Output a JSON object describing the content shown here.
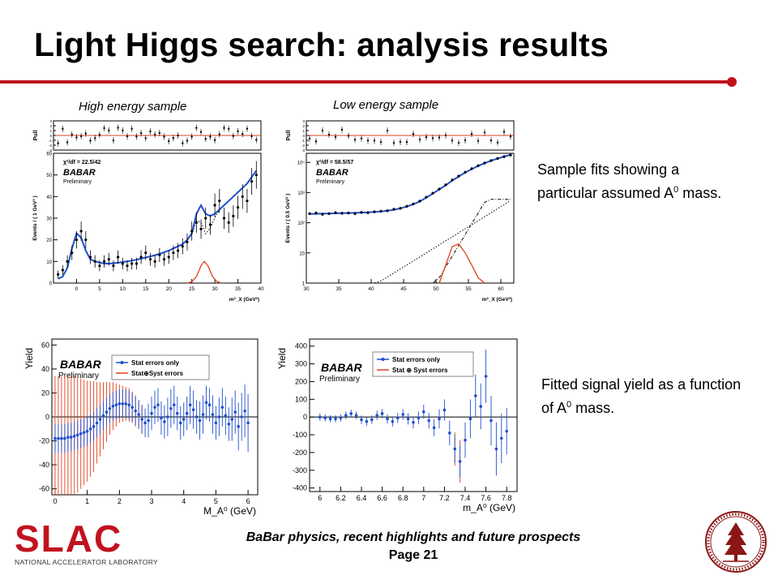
{
  "slide": {
    "title": "Light Higgs search: analysis results",
    "caption_high": "High energy sample",
    "caption_low": "Low energy sample",
    "desc_fits_pre": "Sample fits showing a particular assumed A",
    "desc_fits_sup": "0",
    "desc_fits_post": " mass.",
    "desc_yield_pre": "Fitted signal yield as a function of A",
    "desc_yield_sup": "0",
    "desc_yield_post": " mass.",
    "footer_title": "BaBar physics, recent highlights and future prospects",
    "footer_page": "Page 21",
    "slac_logo_text": "SLAC",
    "slac_logo_subtitle": "NATIONAL ACCELERATOR LABORATORY",
    "seal_name": "stanford-university-seal",
    "colors": {
      "accent": "#c1121f",
      "fit_blue": "#1f4fcf",
      "signal_red": "#e0421e"
    }
  },
  "chart_data": [
    {
      "type": "scatter",
      "panel": "fit-high",
      "pull_label": "Pull",
      "ylabel": "Events / ( 1 GeV² )",
      "xlabel": "m²_X (GeV²)",
      "chi2": "χ²/df = 22.5/42",
      "brand": "BABAR",
      "preliminary": "Preliminary",
      "xlim": [
        -5,
        40
      ],
      "ylim": [
        0,
        60
      ],
      "x_ticks": [
        "0",
        "5",
        "10",
        "15",
        "20",
        "25",
        "30",
        "35",
        "40"
      ],
      "y_ticks": [
        "0",
        "10",
        "20",
        "30",
        "40",
        "50",
        "60"
      ],
      "pull_ticks": [
        "-3",
        "-2",
        "-1",
        "0",
        "1",
        "2",
        "3"
      ],
      "x": [
        -4,
        -3,
        -2,
        -1,
        0,
        1,
        2,
        3,
        4,
        5,
        6,
        7,
        8,
        9,
        10,
        11,
        12,
        13,
        14,
        15,
        16,
        17,
        18,
        19,
        20,
        21,
        22,
        23,
        24,
        25,
        26,
        27,
        28,
        29,
        30,
        31,
        32,
        33,
        34,
        35,
        36,
        37,
        38,
        39
      ],
      "values": [
        4,
        6,
        10,
        14,
        20,
        24,
        20,
        12,
        10,
        8,
        10,
        11,
        8,
        12,
        9,
        8,
        9,
        9,
        12,
        14,
        11,
        10,
        13,
        11,
        12,
        14,
        15,
        17,
        19,
        24,
        28,
        25,
        30,
        27,
        36,
        38,
        30,
        28,
        31,
        35,
        40,
        38,
        47,
        50
      ],
      "fit": [
        2,
        3,
        7,
        16,
        23,
        21,
        15,
        11,
        10,
        9.5,
        9,
        9,
        9.2,
        9.4,
        9.7,
        10,
        10.4,
        10.8,
        11.3,
        11.8,
        12.3,
        12.9,
        13.5,
        14.2,
        15,
        16,
        17,
        18,
        20,
        23,
        32,
        36,
        32,
        31,
        32,
        34,
        36,
        38,
        40,
        42,
        44,
        46,
        49,
        52
      ],
      "signal": [
        [
          24,
          0
        ],
        [
          25,
          0.6
        ],
        [
          26,
          3
        ],
        [
          27,
          8
        ],
        [
          27.7,
          10
        ],
        [
          28.5,
          8
        ],
        [
          29.5,
          3
        ],
        [
          30.5,
          0.6
        ],
        [
          31.5,
          0
        ]
      ]
    },
    {
      "type": "scatter",
      "panel": "fit-low",
      "pull_label": "Pull",
      "ylabel": "Events / ( 0.5 GeV² )",
      "xlabel": "m²_X (GeV²)",
      "chi2": "χ²/df = 58.5/57",
      "brand": "BABAR",
      "preliminary": "Preliminary",
      "log_y": true,
      "xlim": [
        30,
        62
      ],
      "ylim": [
        1,
        20000
      ],
      "x_ticks": [
        "30",
        "35",
        "40",
        "45",
        "50",
        "55",
        "60"
      ],
      "y_ticks": [
        "1",
        "10",
        "10²",
        "10³",
        "10⁴"
      ],
      "pull_ticks": [
        "-3",
        "-2",
        "-1",
        "0",
        "1",
        "2",
        "3"
      ],
      "x": [
        30.5,
        31.5,
        32.5,
        33.5,
        34.5,
        35.5,
        36.5,
        37.5,
        38.5,
        39.5,
        40.5,
        41.5,
        42.5,
        43.5,
        44.5,
        45.5,
        46.5,
        47.5,
        48.5,
        49.5,
        50.5,
        51.5,
        52.5,
        53.5,
        54.5,
        55.5,
        56.5,
        57.5,
        58.5,
        59.5,
        60.5,
        61.5
      ],
      "values": [
        200,
        210,
        190,
        200,
        215,
        205,
        210,
        200,
        220,
        215,
        230,
        240,
        250,
        280,
        300,
        350,
        420,
        520,
        700,
        950,
        1300,
        1800,
        2600,
        3500,
        4700,
        6200,
        7800,
        9500,
        11500,
        13500,
        15500,
        17500
      ],
      "fit": [
        195,
        198,
        200,
        202,
        205,
        208,
        210,
        213,
        217,
        222,
        228,
        237,
        250,
        270,
        300,
        345,
        410,
        510,
        680,
        920,
        1270,
        1750,
        2500,
        3400,
        4600,
        6000,
        7600,
        9400,
        11400,
        13400,
        15600,
        17800
      ],
      "signal": [
        [
          50.5,
          1
        ],
        [
          51.5,
          4
        ],
        [
          52.5,
          16
        ],
        [
          53.5,
          20
        ],
        [
          54.5,
          10
        ],
        [
          55.5,
          4
        ],
        [
          56.5,
          1.5
        ],
        [
          57.5,
          1
        ]
      ]
    },
    {
      "type": "scatter",
      "panel": "yield-high",
      "ylabel": "Yield",
      "xlabel": "M_A⁰ (GeV)",
      "brand": "BABAR",
      "preliminary": "Preliminary",
      "legend": [
        "Stat errors only",
        "Stat⊕Syst errors"
      ],
      "xlim": [
        -0.1,
        6.3
      ],
      "ylim": [
        -65,
        65
      ],
      "x_ticks": [
        "0",
        "1",
        "2",
        "3",
        "4",
        "5",
        "6"
      ],
      "y_ticks": [
        "-60",
        "-40",
        "-20",
        "0",
        "20",
        "40",
        "60"
      ],
      "series": [
        {
          "name": "Stat errors only",
          "x": [
            0,
            0.1,
            0.2,
            0.3,
            0.4,
            0.5,
            0.6,
            0.7,
            0.8,
            0.9,
            1.0,
            1.1,
            1.2,
            1.3,
            1.4,
            1.5,
            1.6,
            1.7,
            1.8,
            1.9,
            2.0,
            2.1,
            2.2,
            2.3,
            2.4,
            2.5,
            2.6,
            2.7,
            2.8,
            2.9,
            3.0,
            3.1,
            3.2,
            3.3,
            3.4,
            3.5,
            3.6,
            3.7,
            3.8,
            3.9,
            4.0,
            4.1,
            4.2,
            4.3,
            4.4,
            4.5,
            4.6,
            4.7,
            4.8,
            4.9,
            5.0,
            5.1,
            5.2,
            5.3,
            5.4,
            5.5,
            5.6,
            5.7,
            5.8,
            5.9,
            6.0
          ],
          "y": [
            -18,
            -18,
            -18,
            -18,
            -17,
            -17,
            -16,
            -15,
            -14,
            -13,
            -12,
            -10,
            -8,
            -5,
            -2,
            1,
            4,
            7,
            9,
            10,
            11,
            11,
            11,
            10,
            8,
            5,
            2,
            -2,
            -5,
            -3,
            3,
            8,
            10,
            -1,
            -4,
            0,
            7,
            10,
            3,
            -5,
            -2,
            3,
            10,
            6,
            0,
            -3,
            2,
            12,
            10,
            2,
            -5,
            0,
            8,
            1,
            -6,
            -2,
            4,
            -8,
            0,
            5,
            -5
          ],
          "err": [
            12,
            12,
            12,
            12,
            12,
            12,
            12,
            12,
            12,
            12,
            12,
            12,
            12,
            12,
            12,
            12,
            12,
            12,
            12,
            12,
            12,
            12,
            12,
            12,
            12,
            12,
            12,
            12,
            12,
            14,
            14,
            14,
            14,
            14,
            14,
            16,
            16,
            16,
            14,
            14,
            14,
            14,
            16,
            16,
            14,
            16,
            16,
            14,
            14,
            16,
            14,
            16,
            16,
            16,
            14,
            18,
            18,
            20,
            20,
            22,
            24
          ]
        },
        {
          "name": "Stat⊕Syst errors",
          "x": [
            0,
            0.1,
            0.2,
            0.3,
            0.4,
            0.5,
            0.6,
            0.7,
            0.8,
            0.9,
            1.0,
            1.1,
            1.2,
            1.3,
            1.4,
            1.5,
            1.6,
            1.7,
            1.8,
            1.9,
            2.0,
            2.1,
            2.2,
            2.3,
            2.4,
            2.5,
            2.6,
            2.7
          ],
          "y": [
            -18,
            -18,
            -18,
            -18,
            -17,
            -17,
            -16,
            -15,
            -14,
            -13,
            -12,
            -10,
            -8,
            -5,
            -2,
            1,
            4,
            7,
            9,
            10,
            11,
            11,
            11,
            10,
            8,
            5,
            2,
            -2
          ],
          "err": [
            52,
            52,
            52,
            52,
            52,
            51,
            50,
            48,
            46,
            44,
            42,
            40,
            38,
            34,
            31,
            28,
            25,
            22,
            20,
            18,
            16,
            15,
            14,
            14,
            13,
            13,
            12,
            12
          ]
        }
      ]
    },
    {
      "type": "scatter",
      "panel": "yield-low",
      "ylabel": "Yield",
      "xlabel": "m_A⁰ (GeV)",
      "brand": "BABAR",
      "preliminary": "Preliminary",
      "legend": [
        "Stat errors only",
        "Stat ⊕ Syst errors"
      ],
      "xlim": [
        5.9,
        7.9
      ],
      "ylim": [
        -420,
        440
      ],
      "x_ticks": [
        "6",
        "6.2",
        "6.4",
        "6.6",
        "6.8",
        "7",
        "7.2",
        "7.4",
        "7.6",
        "7.8"
      ],
      "y_ticks": [
        "-400",
        "-300",
        "-200",
        "-100",
        "0",
        "100",
        "200",
        "300",
        "400"
      ],
      "series": [
        {
          "name": "Stat errors only",
          "x": [
            6.0,
            6.05,
            6.1,
            6.15,
            6.2,
            6.25,
            6.3,
            6.35,
            6.4,
            6.45,
            6.5,
            6.55,
            6.6,
            6.65,
            6.7,
            6.75,
            6.8,
            6.85,
            6.9,
            6.95,
            7.0,
            7.05,
            7.1,
            7.15,
            7.2,
            7.25,
            7.3,
            7.35,
            7.4,
            7.45,
            7.5,
            7.55,
            7.6,
            7.65,
            7.7,
            7.75,
            7.8
          ],
          "y": [
            0,
            -5,
            -10,
            -10,
            -5,
            10,
            20,
            10,
            -15,
            -25,
            -15,
            10,
            20,
            -10,
            -25,
            -5,
            15,
            -10,
            -30,
            -5,
            30,
            -20,
            -60,
            -10,
            40,
            -90,
            -180,
            -250,
            -130,
            -10,
            120,
            60,
            230,
            -20,
            -180,
            -120,
            -80
          ],
          "err": [
            20,
            20,
            20,
            20,
            20,
            22,
            22,
            22,
            24,
            24,
            24,
            26,
            26,
            26,
            28,
            28,
            30,
            32,
            34,
            36,
            40,
            44,
            48,
            54,
            60,
            70,
            80,
            90,
            100,
            110,
            120,
            130,
            150,
            140,
            150,
            140,
            130
          ]
        },
        {
          "name": "Stat ⊕ Syst errors",
          "x": [
            7.3,
            7.35
          ],
          "y": [
            -180,
            -250
          ],
          "err": [
            95,
            120
          ]
        }
      ]
    }
  ]
}
